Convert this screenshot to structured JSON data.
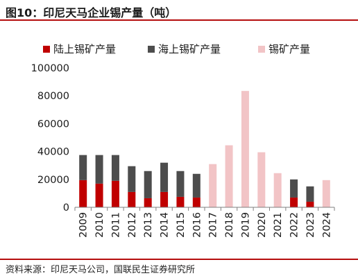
{
  "header": {
    "title": "图10：印尼天马企业锡产量（吨）"
  },
  "footer": {
    "source": "资料来源：印尼天马公司，国联民生证券研究所"
  },
  "chart_data": {
    "type": "bar",
    "stacked": true,
    "categories": [
      "2009",
      "2010",
      "2011",
      "2012",
      "2013",
      "2014",
      "2015",
      "2016",
      "2017",
      "2018",
      "2019",
      "2020",
      "2021",
      "2022",
      "2023",
      "2024"
    ],
    "series": [
      {
        "name": "陆上锡矿产量",
        "color": "#c00000",
        "values": [
          19500,
          17000,
          19000,
          11000,
          6500,
          11000,
          7500,
          7000,
          null,
          null,
          null,
          null,
          null,
          7000,
          4000,
          null
        ]
      },
      {
        "name": "海上锡矿产量",
        "color": "#4d4d4d",
        "values": [
          18000,
          20500,
          18500,
          18500,
          19500,
          21000,
          18500,
          17000,
          null,
          null,
          null,
          null,
          null,
          13000,
          11000,
          null
        ]
      },
      {
        "name": "锡矿产量",
        "color": "#f2c4c6",
        "values": [
          null,
          null,
          null,
          null,
          null,
          null,
          null,
          null,
          31000,
          44500,
          83500,
          39500,
          24500,
          null,
          null,
          19500
        ]
      }
    ],
    "yticks": [
      0,
      20000,
      40000,
      60000,
      80000,
      100000
    ],
    "ylim": [
      0,
      100000
    ],
    "legend_position": "top",
    "grid": false
  }
}
